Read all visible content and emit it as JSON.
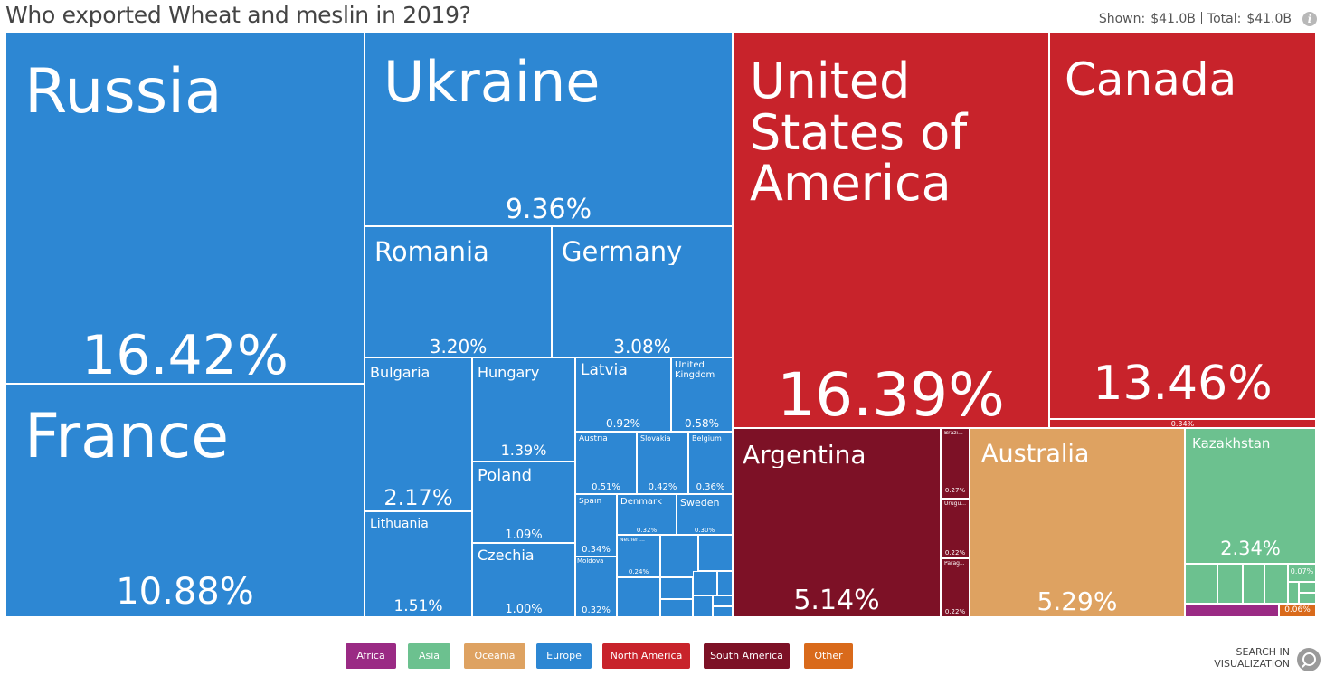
{
  "header": {
    "title": "Who exported Wheat and meslin in 2019?",
    "shown_label": "Shown:",
    "shown_value": "$41.0B",
    "total_label": "Total:",
    "total_value": "$41.0B"
  },
  "search": {
    "line1": "SEARCH IN",
    "line2": "VISUALIZATION"
  },
  "colors": {
    "Africa": "#9a2a84",
    "Asia": "#6cc18f",
    "Oceania": "#dea261",
    "Europe": "#2d87d3",
    "North America": "#c8232b",
    "South America": "#7d1126",
    "Other": "#d96a1b"
  },
  "legend": [
    "Africa",
    "Asia",
    "Oceania",
    "Europe",
    "North America",
    "South America",
    "Other"
  ],
  "chart_data": {
    "type": "treemap",
    "title": "Who exported Wheat and meslin in 2019?",
    "unit": "share of total exports (%)",
    "series": [
      {
        "name": "Russia",
        "region": "Europe",
        "value": 16.42,
        "pct_label": "16.42%"
      },
      {
        "name": "France",
        "region": "Europe",
        "value": 10.88,
        "pct_label": "10.88%"
      },
      {
        "name": "Ukraine",
        "region": "Europe",
        "value": 9.36,
        "pct_label": "9.36%"
      },
      {
        "name": "Romania",
        "region": "Europe",
        "value": 3.2,
        "pct_label": "3.20%"
      },
      {
        "name": "Germany",
        "region": "Europe",
        "value": 3.08,
        "pct_label": "3.08%"
      },
      {
        "name": "Bulgaria",
        "region": "Europe",
        "value": 2.17,
        "pct_label": "2.17%"
      },
      {
        "name": "Lithuania",
        "region": "Europe",
        "value": 1.51,
        "pct_label": "1.51%"
      },
      {
        "name": "Hungary",
        "region": "Europe",
        "value": 1.39,
        "pct_label": "1.39%"
      },
      {
        "name": "Poland",
        "region": "Europe",
        "value": 1.09,
        "pct_label": "1.09%"
      },
      {
        "name": "Czechia",
        "region": "Europe",
        "value": 1.0,
        "pct_label": "1.00%"
      },
      {
        "name": "Latvia",
        "region": "Europe",
        "value": 0.92,
        "pct_label": "0.92%"
      },
      {
        "name": "United Kingdom",
        "region": "Europe",
        "value": 0.58,
        "pct_label": "0.58%"
      },
      {
        "name": "Austria",
        "region": "Europe",
        "value": 0.51,
        "pct_label": "0.51%"
      },
      {
        "name": "Slovakia",
        "region": "Europe",
        "value": 0.42,
        "pct_label": "0.42%"
      },
      {
        "name": "Belgium",
        "region": "Europe",
        "value": 0.36,
        "pct_label": "0.36%"
      },
      {
        "name": "Spain",
        "region": "Europe",
        "value": 0.34,
        "pct_label": "0.34%"
      },
      {
        "name": "Denmark",
        "region": "Europe",
        "value": 0.32,
        "pct_label": "0.32%"
      },
      {
        "name": "Sweden",
        "region": "Europe",
        "value": 0.3,
        "pct_label": "0.30%"
      },
      {
        "name": "Moldova",
        "region": "Europe",
        "value": 0.32,
        "pct_label": "0.32%"
      },
      {
        "name": "Netherl...",
        "region": "Europe",
        "value": 0.24,
        "pct_label": "0.24%"
      },
      {
        "name": "United States of America",
        "region": "North America",
        "value": 16.39,
        "pct_label": "16.39%"
      },
      {
        "name": "Canada",
        "region": "North America",
        "value": 13.46,
        "pct_label": "13.46%"
      },
      {
        "name": "",
        "region": "North America",
        "value": 0.34,
        "pct_label": "0.34%"
      },
      {
        "name": "Argentina",
        "region": "South America",
        "value": 5.14,
        "pct_label": "5.14%"
      },
      {
        "name": "Brazi...",
        "region": "South America",
        "value": 0.27,
        "pct_label": "0.27%"
      },
      {
        "name": "Urugu...",
        "region": "South America",
        "value": 0.22,
        "pct_label": "0.22%"
      },
      {
        "name": "Parag...",
        "region": "South America",
        "value": 0.22,
        "pct_label": "0.22%"
      },
      {
        "name": "Australia",
        "region": "Oceania",
        "value": 5.29,
        "pct_label": "5.29%"
      },
      {
        "name": "Kazakhstan",
        "region": "Asia",
        "value": 2.34,
        "pct_label": "2.34%"
      },
      {
        "name": "",
        "region": "Asia",
        "value": 0.07,
        "pct_label": "0.07%"
      },
      {
        "name": "",
        "region": "Other",
        "value": 0.06,
        "pct_label": "0.06%"
      }
    ]
  }
}
